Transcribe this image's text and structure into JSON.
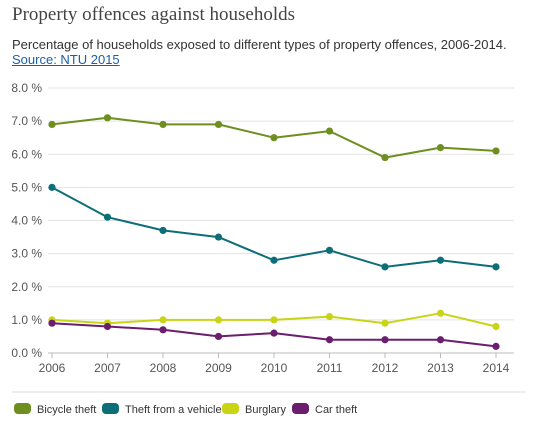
{
  "header": {
    "title": "Property offences against households",
    "subtitle": "Percentage of households exposed to different types of property offences, 2006-2014.",
    "source_label": "Source: NTU 2015"
  },
  "chart_data": {
    "type": "line",
    "title": "Property offences against households",
    "subtitle": "Percentage of households exposed to different types of property offences, 2006-2014.",
    "x": [
      "2006",
      "2007",
      "2008",
      "2009",
      "2010",
      "2011",
      "2012",
      "2013",
      "2014"
    ],
    "y_ticks": [
      "0.0 %",
      "1.0 %",
      "2.0 %",
      "3.0 %",
      "4.0 %",
      "5.0 %",
      "6.0 %",
      "7.0 %",
      "8.0 %"
    ],
    "ylim": [
      0,
      8
    ],
    "grid": "horizontal",
    "legend_position": "bottom",
    "series": [
      {
        "name": "Bicycle theft",
        "color": "#6e8f1f",
        "values": [
          6.9,
          7.1,
          6.9,
          6.9,
          6.5,
          6.7,
          5.9,
          6.2,
          6.1
        ]
      },
      {
        "name": "Theft from a vehicle",
        "color": "#0e6e78",
        "values": [
          5.0,
          4.1,
          3.7,
          3.5,
          2.8,
          3.1,
          2.6,
          2.8,
          2.6
        ]
      },
      {
        "name": "Burglary",
        "color": "#c8d414",
        "values": [
          1.0,
          0.9,
          1.0,
          1.0,
          1.0,
          1.1,
          0.9,
          1.2,
          0.8
        ]
      },
      {
        "name": "Car theft",
        "color": "#6b1d6e",
        "values": [
          0.9,
          0.8,
          0.7,
          0.5,
          0.6,
          0.4,
          0.4,
          0.4,
          0.2
        ]
      }
    ]
  }
}
